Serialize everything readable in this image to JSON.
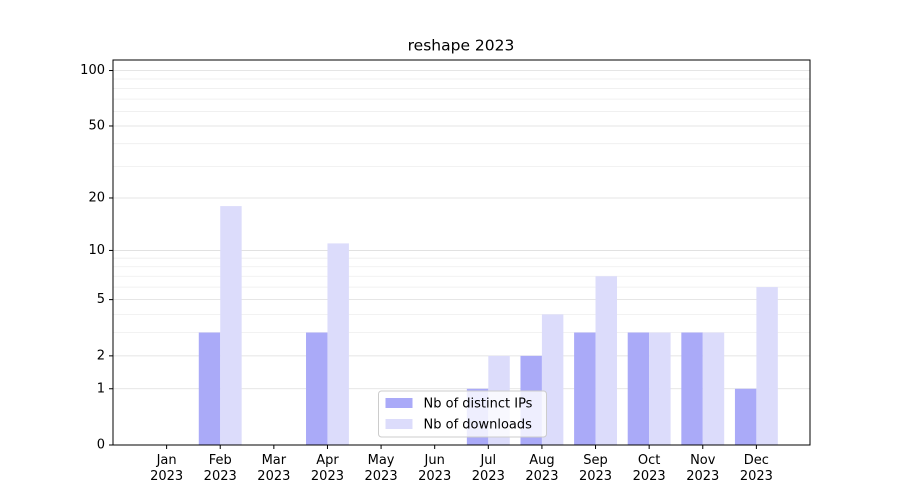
{
  "chart_data": {
    "type": "bar",
    "title": "reshape 2023",
    "categories": [
      "Jan 2023",
      "Feb 2023",
      "Mar 2023",
      "Apr 2023",
      "May 2023",
      "Jun 2023",
      "Jul 2023",
      "Aug 2023",
      "Sep 2023",
      "Oct 2023",
      "Nov 2023",
      "Dec 2023"
    ],
    "series": [
      {
        "name": "Nb of distinct IPs",
        "color": "#aaaaf8",
        "values": [
          0,
          3,
          0,
          3,
          0,
          0,
          1,
          2,
          3,
          3,
          3,
          1
        ]
      },
      {
        "name": "Nb of downloads",
        "color": "#dcdcfb",
        "values": [
          0,
          18,
          0,
          11,
          0,
          0,
          2,
          4,
          7,
          3,
          3,
          6
        ]
      }
    ],
    "yscale": "log1p",
    "ylim": [
      0,
      114
    ],
    "yticks": [
      0,
      1,
      2,
      5,
      10,
      20,
      50,
      100
    ],
    "yminorticks": [
      3,
      4,
      6,
      7,
      8,
      9,
      30,
      40,
      60,
      70,
      80,
      90
    ],
    "grid": true,
    "legend": "lower center"
  }
}
